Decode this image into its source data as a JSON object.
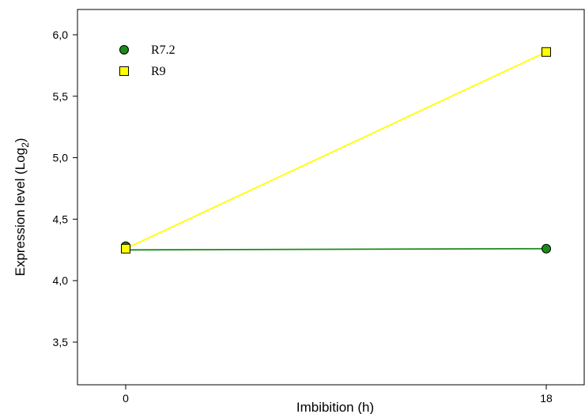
{
  "chart_data": {
    "type": "line",
    "xlabel": "Imbibition (h)",
    "ylabel_main": "Expression level (Log",
    "ylabel_sub": "2",
    "ylabel_close": ")",
    "x_ticks": [
      "0",
      "18"
    ],
    "y_ticks": [
      "3,5",
      "4,0",
      "4,5",
      "5,0",
      "5,5",
      "6,0"
    ],
    "ylim": [
      3.18,
      6.2
    ],
    "x": [
      0,
      18
    ],
    "grid": false,
    "legend_position": "top-left",
    "series": [
      {
        "name": "R7.2",
        "values": [
          4.28,
          4.26
        ],
        "line_values": [
          4.25,
          4.26
        ],
        "marker": "circle",
        "color": "#1a8a1a"
      },
      {
        "name": "R9",
        "values": [
          4.26,
          5.86
        ],
        "line_values": [
          4.26,
          5.86
        ],
        "marker": "square",
        "color": "#ffff00"
      }
    ]
  }
}
